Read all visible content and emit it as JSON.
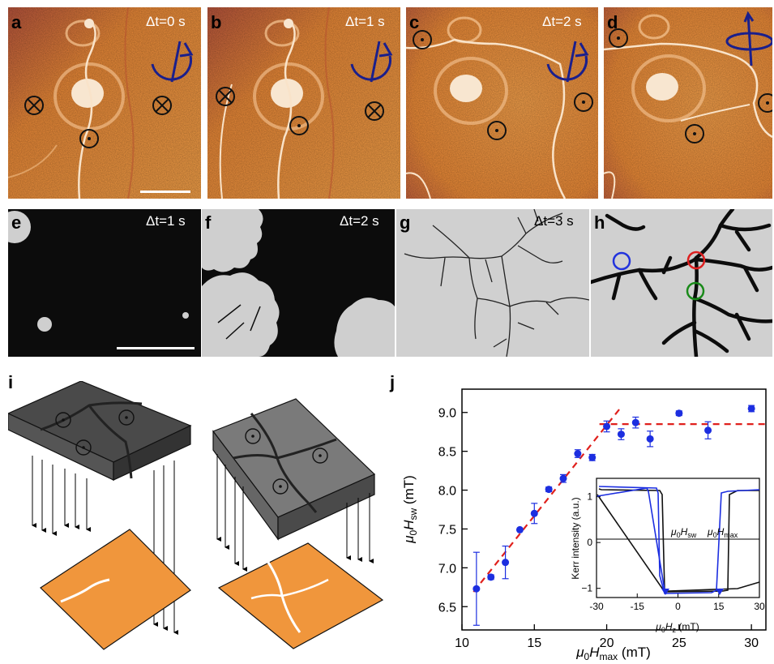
{
  "panels": {
    "a": {
      "label": "a",
      "time": "Δt=0 s"
    },
    "b": {
      "label": "b",
      "time": "Δt=1 s"
    },
    "c": {
      "label": "c",
      "time": "Δt=2 s"
    },
    "d": {
      "label": "d"
    },
    "e": {
      "label": "e",
      "time": "Δt=1 s"
    },
    "f": {
      "label": "f",
      "time": "Δt=2 s"
    },
    "g": {
      "label": "g",
      "time": "Δt=3 s"
    },
    "h": {
      "label": "h"
    },
    "i": {
      "label": "i"
    },
    "j": {
      "label": "j"
    }
  },
  "colors": {
    "kerr_orange": "#f0963c",
    "domain_black": "#0c0c0c",
    "domain_gray": "#cfcfcf",
    "fit_red": "#e0201c",
    "data_blue": "#1c2ee0",
    "arrow_navy": "#1a1f8c",
    "circle_blue": "#2233dd",
    "circle_red": "#dd2020",
    "circle_green": "#1a8a1a"
  },
  "chart_data": {
    "type": "scatter",
    "xlabel_main": "μ0Hmax",
    "xlabel_unit": "(mT)",
    "ylabel_main": "μ0Hsw",
    "ylabel_unit": "(mT)",
    "xlim": [
      10,
      31
    ],
    "ylim": [
      6.2,
      9.3
    ],
    "xticks": [
      10,
      15,
      20,
      25,
      30
    ],
    "yticks": [
      6.5,
      7.0,
      7.5,
      8.0,
      8.5,
      9.0
    ],
    "ytick_labels": [
      "6.5",
      "7.0",
      "7.5",
      "8.0",
      "8.5",
      "9.0"
    ],
    "x": [
      11,
      12,
      13,
      14,
      15,
      16,
      17,
      18,
      19,
      20,
      21,
      22,
      23,
      24,
      25,
      27,
      30
    ],
    "y": [
      6.73,
      6.88,
      7.07,
      7.49,
      7.7,
      8.01,
      8.15,
      8.47,
      8.42,
      8.82,
      8.72,
      8.87,
      8.66,
      null,
      8.99,
      8.77,
      9.05
    ],
    "err": [
      0.47,
      0.03,
      0.21,
      0.02,
      0.13,
      0.03,
      0.05,
      0.05,
      0.04,
      0.07,
      0.07,
      0.07,
      0.1,
      null,
      0.03,
      0.11,
      0.04
    ],
    "fit_lines": [
      {
        "style": "dashed",
        "x": [
          10.8,
          21.0
        ],
        "y": [
          6.69,
          9.07
        ]
      },
      {
        "style": "dashed",
        "x": [
          19.5,
          31.0
        ],
        "y": [
          8.85,
          8.85
        ]
      }
    ],
    "inset": {
      "type": "line",
      "xlabel_main": "μ0Hz",
      "xlabel_unit": "(mT)",
      "ylabel": "Kerr intensity (a.u.)",
      "xlim": [
        -30,
        30
      ],
      "ylim": [
        -1.2,
        1.4
      ],
      "xticks": [
        -30,
        -15,
        0,
        15,
        30
      ],
      "yticks": [
        -1,
        0,
        1
      ],
      "annotation_sw": "μ0Hsw",
      "annotation_max": "μ0Hmax"
    }
  }
}
